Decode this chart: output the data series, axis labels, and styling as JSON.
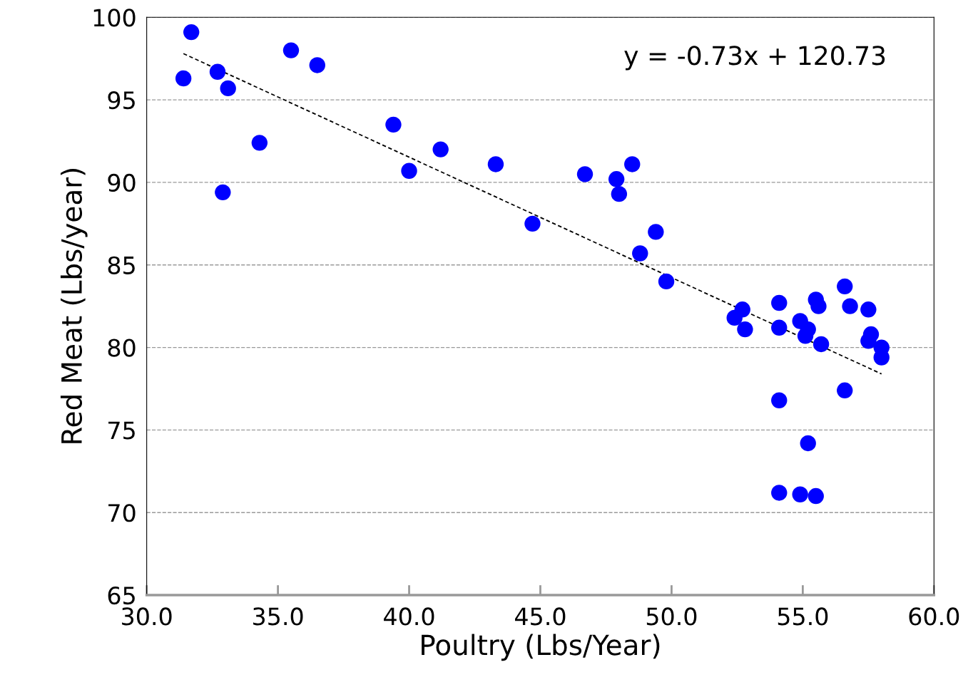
{
  "chart_data": {
    "type": "scatter",
    "xlabel": "Poultry (Lbs/Year)",
    "ylabel": "Red Meat (Lbs/year)",
    "xlim": [
      30,
      60
    ],
    "xticks": [
      {
        "value": 30,
        "label": "30.0"
      },
      {
        "value": 35,
        "label": "35.0"
      },
      {
        "value": 40,
        "label": "40.0"
      },
      {
        "value": 45,
        "label": "45.0"
      },
      {
        "value": 50,
        "label": "50.0"
      },
      {
        "value": 55,
        "label": "55.0"
      },
      {
        "value": 60,
        "label": "60.0"
      }
    ],
    "ylim": [
      65,
      100
    ],
    "yticks": [
      65,
      70,
      75,
      80,
      85,
      90,
      95,
      100
    ],
    "grid": "y",
    "legend": false,
    "annotations": [
      "y = -0.73x + 120.73"
    ],
    "series": [
      {
        "color": "#0000ff",
        "marker": "circle",
        "x": [
          31.4,
          31.7,
          32.7,
          33.1,
          32.9,
          34.3,
          35.5,
          36.5,
          39.4,
          40.0,
          41.2,
          43.3,
          44.7,
          46.7,
          47.9,
          48.0,
          48.5,
          49.4,
          48.8,
          49.8,
          52.4,
          52.7,
          52.8,
          54.1,
          54.1,
          54.1,
          54.1,
          54.9,
          55.2,
          55.1,
          55.5,
          55.6,
          55.7,
          54.9,
          55.5,
          55.2,
          56.6,
          56.8,
          56.6,
          57.5,
          57.6,
          57.5,
          58.0,
          58.0
        ],
        "values": [
          96.3,
          99.1,
          96.7,
          95.7,
          89.4,
          92.4,
          98.0,
          97.1,
          93.5,
          90.7,
          92.0,
          91.1,
          87.5,
          90.5,
          90.2,
          89.3,
          91.1,
          87.0,
          85.7,
          84.0,
          81.8,
          82.3,
          81.1,
          82.7,
          81.2,
          76.8,
          71.2,
          81.6,
          81.1,
          80.7,
          82.9,
          82.5,
          80.2,
          71.1,
          71.0,
          74.2,
          83.7,
          82.5,
          77.4,
          82.3,
          80.8,
          80.4,
          80.0,
          79.4
        ]
      },
      {
        "type": "line",
        "color": "#000000",
        "marker": "none",
        "line_style": "dotted",
        "x": [
          31.4,
          58.0
        ],
        "values": [
          97.8,
          78.4
        ]
      }
    ]
  }
}
